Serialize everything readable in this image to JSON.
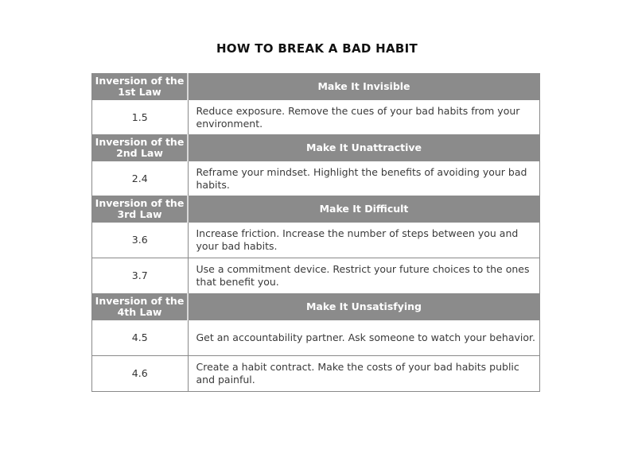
{
  "title": "HOW TO BREAK A BAD HABIT",
  "sections": [
    {
      "law": "Inversion of the 1st Law",
      "heading": "Make It Invisible",
      "rows": [
        {
          "num": "1.5",
          "text": "Reduce exposure. Remove the cues of your bad habits from your environment."
        }
      ]
    },
    {
      "law": "Inversion of the 2nd Law",
      "heading": "Make It Unattractive",
      "rows": [
        {
          "num": "2.4",
          "text": "Reframe your mindset. Highlight the benefits of avoiding your bad habits."
        }
      ]
    },
    {
      "law": "Inversion of the 3rd Law",
      "heading": "Make It Difficult",
      "rows": [
        {
          "num": "3.6",
          "text": "Increase friction. Increase the number of steps between you and your bad habits."
        },
        {
          "num": "3.7",
          "text": "Use a commitment device. Restrict your future choices to the ones that benefit you."
        }
      ]
    },
    {
      "law": "Inversion of the 4th Law",
      "heading": "Make It Unsatisfying",
      "rows": [
        {
          "num": "4.5",
          "text": "Get an accountability partner. Ask someone to watch your behavior."
        },
        {
          "num": "4.6",
          "text": "Create a habit contract. Make the costs of your bad habits public and painful."
        }
      ]
    }
  ]
}
